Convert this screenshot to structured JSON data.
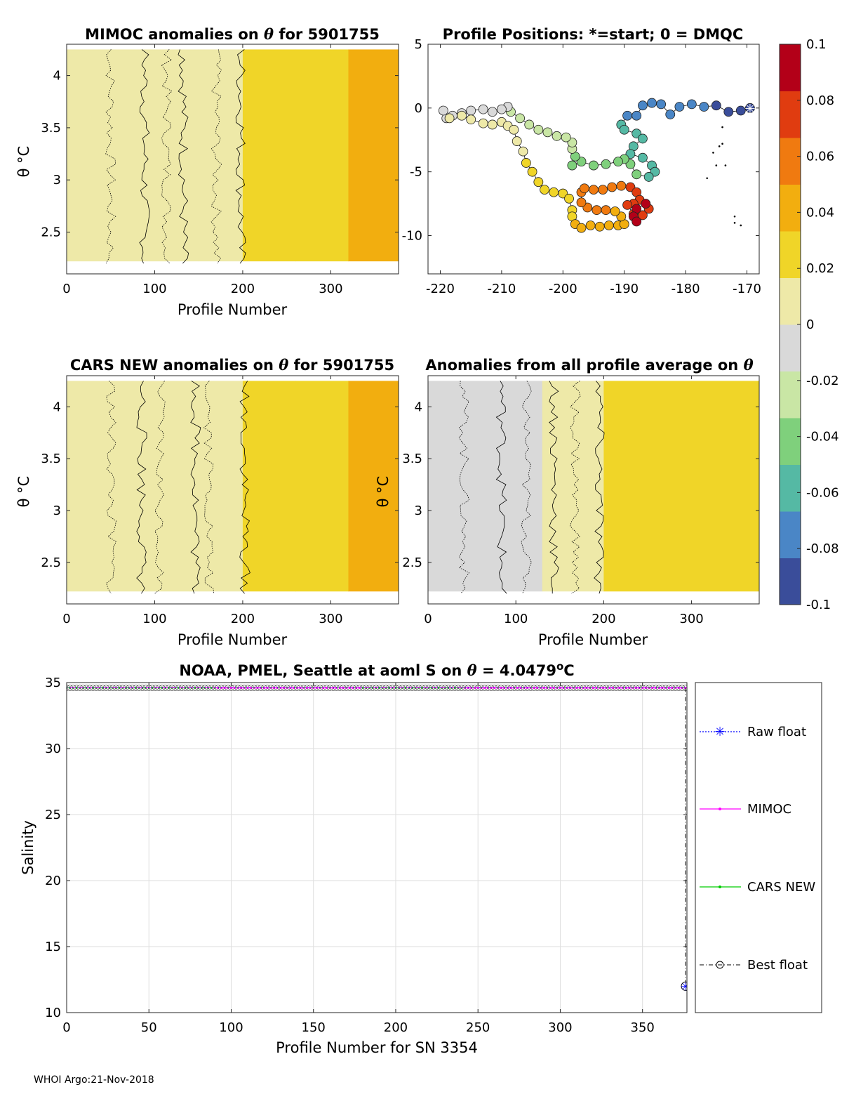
{
  "footer": "WHOI Argo:21-Nov-2018",
  "colors": {
    "raw_float": "#0000ff",
    "mimoc": "#ff00ff",
    "cars_new": "#00cc00",
    "best_float": "#000000",
    "colormap": [
      "#3a4d9a",
      "#4a86c6",
      "#55b9a4",
      "#7fd07c",
      "#c9e6a5",
      "#d9d9d9",
      "#eee9a8",
      "#f0d528",
      "#f2ae0f",
      "#f07a10",
      "#e03c10",
      "#b30018"
    ]
  },
  "colorbar": {
    "ticks": [
      "0.1",
      "0.08",
      "0.06",
      "0.04",
      "0.02",
      "0",
      "-0.02",
      "-0.04",
      "-0.06",
      "-0.08",
      "-0.1"
    ]
  },
  "chart_data": [
    {
      "id": "mimoc_anom",
      "type": "heatmap",
      "title": "MIMOC anomalies on",
      "title_sym": "θ",
      "title_tail": "  for 5901755",
      "xlabel": "Profile Number",
      "ylabel": "θ °C",
      "x_ticks": [
        "0",
        "100",
        "200",
        "300"
      ],
      "y_ticks": [
        "4",
        "3.5",
        "3",
        "2.5"
      ],
      "xlim": [
        0,
        377
      ],
      "ylim": [
        2.1,
        4.3
      ],
      "columns": [
        {
          "x": [
            0,
            150
          ],
          "value": 0.0
        },
        {
          "x": [
            150,
            200
          ],
          "value": 0.005
        },
        {
          "x": [
            200,
            260
          ],
          "value": 0.02
        },
        {
          "x": [
            260,
            320
          ],
          "value": 0.028
        },
        {
          "x": [
            320,
            377
          ],
          "value": 0.035
        }
      ]
    },
    {
      "id": "positions",
      "type": "scatter",
      "title": "Profile Positions: *=start; 0 = DMQC",
      "x_ticks": [
        "-220",
        "-210",
        "-200",
        "-190",
        "-180",
        "-170"
      ],
      "y_ticks": [
        "5",
        "0",
        "-5",
        "-10"
      ],
      "xlim": [
        -222,
        -168
      ],
      "ylim": [
        -13,
        5
      ],
      "path": [
        [
          -169.5,
          0
        ],
        [
          -171,
          -0.2
        ],
        [
          -173,
          -0.3
        ],
        [
          -175,
          0.2
        ],
        [
          -177,
          0.1
        ],
        [
          -179,
          0.3
        ],
        [
          -181,
          0.1
        ],
        [
          -182.5,
          -0.5
        ],
        [
          -184,
          0.3
        ],
        [
          -185.5,
          0.4
        ],
        [
          -187,
          0.2
        ],
        [
          -188,
          -0.6
        ],
        [
          -189.5,
          -0.6
        ],
        [
          -190.5,
          -1.3
        ],
        [
          -190,
          -1.7
        ],
        [
          -188,
          -2
        ],
        [
          -187,
          -2.4
        ],
        [
          -188.5,
          -3
        ],
        [
          -189,
          -3.6
        ],
        [
          -187,
          -3.9
        ],
        [
          -185.5,
          -4.5
        ],
        [
          -185,
          -5
        ],
        [
          -186,
          -5.4
        ],
        [
          -188,
          -5.2
        ],
        [
          -189,
          -4.4
        ],
        [
          -190,
          -4
        ],
        [
          -191,
          -4.2
        ],
        [
          -193,
          -4.4
        ],
        [
          -195,
          -4.5
        ],
        [
          -197,
          -4.2
        ],
        [
          -198.5,
          -4.5
        ],
        [
          -198,
          -3.8
        ],
        [
          -198.5,
          -3.2
        ],
        [
          -198.5,
          -2.7
        ],
        [
          -199.5,
          -2.3
        ],
        [
          -201,
          -2.2
        ],
        [
          -202.5,
          -1.9
        ],
        [
          -204,
          -1.7
        ],
        [
          -205.5,
          -1.3
        ],
        [
          -207,
          -0.8
        ],
        [
          -208.5,
          -0.3
        ],
        [
          -209,
          0.1
        ],
        [
          -210,
          -0.1
        ],
        [
          -211.5,
          -0.3
        ],
        [
          -213,
          -0.1
        ],
        [
          -215,
          -0.2
        ],
        [
          -216.5,
          -0.4
        ],
        [
          -218,
          -0.6
        ],
        [
          -219,
          -0.8
        ],
        [
          -219.5,
          -0.2
        ],
        [
          -218.5,
          -0.8
        ],
        [
          -216.5,
          -0.6
        ],
        [
          -215,
          -0.9
        ],
        [
          -213,
          -1.2
        ],
        [
          -211.5,
          -1.3
        ],
        [
          -210,
          -1.1
        ],
        [
          -209,
          -1.4
        ],
        [
          -208,
          -1.7
        ],
        [
          -207.5,
          -2.6
        ],
        [
          -206.5,
          -3.4
        ],
        [
          -206,
          -4.3
        ],
        [
          -205,
          -5
        ],
        [
          -204,
          -5.8
        ],
        [
          -203,
          -6.4
        ],
        [
          -201.5,
          -6.6
        ],
        [
          -200,
          -6.7
        ],
        [
          -199,
          -7.1
        ],
        [
          -198.5,
          -8
        ],
        [
          -198.5,
          -8.5
        ],
        [
          -198,
          -9.1
        ],
        [
          -197,
          -9.4
        ],
        [
          -195.5,
          -9.2
        ],
        [
          -194,
          -9.3
        ],
        [
          -192.5,
          -9.2
        ],
        [
          -191,
          -9.2
        ],
        [
          -190,
          -9.1
        ],
        [
          -190.5,
          -8.5
        ],
        [
          -191.5,
          -8.1
        ],
        [
          -193,
          -8
        ],
        [
          -194.5,
          -8
        ],
        [
          -196,
          -7.8
        ],
        [
          -197,
          -7.4
        ],
        [
          -197,
          -6.6
        ],
        [
          -196.5,
          -6.3
        ],
        [
          -195,
          -6.4
        ],
        [
          -193.5,
          -6.4
        ],
        [
          -192,
          -6.2
        ],
        [
          -190.5,
          -6.1
        ],
        [
          -189,
          -6.2
        ],
        [
          -188,
          -6.6
        ],
        [
          -187.5,
          -7.2
        ],
        [
          -188.5,
          -7.5
        ],
        [
          -189.5,
          -7.6
        ],
        [
          -188.5,
          -8.3
        ],
        [
          -188,
          -8.8
        ],
        [
          -187,
          -8.4
        ],
        [
          -186,
          -7.9
        ],
        [
          -186.5,
          -7.5
        ],
        [
          -188,
          -7.9
        ],
        [
          -188.5,
          -8.5
        ],
        [
          -188,
          -8.9
        ]
      ],
      "dots": [
        [
          -174,
          -1.5
        ],
        [
          -174,
          -2.8
        ],
        [
          -175.5,
          -3.5
        ],
        [
          -175,
          -4.5
        ],
        [
          -176.5,
          -5.5
        ],
        [
          -172,
          -8.5
        ],
        [
          -171,
          -9.2
        ],
        [
          -172,
          -9
        ],
        [
          -173.5,
          -4.5
        ],
        [
          -174.5,
          -3
        ]
      ],
      "start": [
        -169.5,
        0
      ]
    },
    {
      "id": "cars_anom",
      "type": "heatmap",
      "title": "CARS NEW anomalies on",
      "title_sym": "θ",
      "title_tail": " for 5901755",
      "xlabel": "Profile Number",
      "ylabel": "θ °C",
      "x_ticks": [
        "0",
        "100",
        "200",
        "300"
      ],
      "y_ticks": [
        "4",
        "3.5",
        "3",
        "2.5"
      ],
      "xlim": [
        0,
        377
      ],
      "ylim": [
        2.1,
        4.3
      ],
      "columns": [
        {
          "x": [
            0,
            140
          ],
          "value": 0.0
        },
        {
          "x": [
            140,
            200
          ],
          "value": 0.008
        },
        {
          "x": [
            200,
            260
          ],
          "value": 0.022
        },
        {
          "x": [
            260,
            320
          ],
          "value": 0.03
        },
        {
          "x": [
            320,
            377
          ],
          "value": 0.04
        }
      ]
    },
    {
      "id": "profile_avg_anom",
      "type": "heatmap",
      "title": "Anomalies from all profile average on",
      "title_sym": "θ",
      "title_tail": "",
      "xlabel": "Profile Number",
      "ylabel": "θ °C",
      "x_ticks": [
        "0",
        "100",
        "200",
        "300"
      ],
      "y_ticks": [
        "4",
        "3.5",
        "3",
        "2.5"
      ],
      "xlim": [
        0,
        377
      ],
      "ylim": [
        2.1,
        4.3
      ],
      "columns": [
        {
          "x": [
            0,
            40
          ],
          "value": -0.008
        },
        {
          "x": [
            40,
            130
          ],
          "value": -0.006
        },
        {
          "x": [
            130,
            200
          ],
          "value": 0.0
        },
        {
          "x": [
            200,
            377
          ],
          "value": 0.02
        }
      ]
    },
    {
      "id": "salinity",
      "type": "line",
      "title": "NOAA, PMEL, Seattle at aoml S on",
      "title_sym": "θ",
      "title_tail": " = 4.0479",
      "title_unit": "o",
      "title_end": "C",
      "xlabel": "Profile Number for SN 3354",
      "ylabel": "Salinity",
      "x_ticks": [
        "0",
        "50",
        "100",
        "150",
        "200",
        "250",
        "300",
        "350"
      ],
      "y_ticks": [
        "35",
        "30",
        "25",
        "20",
        "15",
        "10"
      ],
      "xlim": [
        0,
        377
      ],
      "ylim": [
        10,
        35
      ],
      "grid": true,
      "legend_position": "outside-right",
      "series": [
        {
          "name": "Raw float",
          "marker": "*",
          "style": "dotted",
          "values_const": 34.6,
          "last": [
            377,
            12.0
          ]
        },
        {
          "name": "MIMOC",
          "marker": "dot",
          "style": "solid",
          "values_const": 34.6
        },
        {
          "name": "CARS NEW",
          "marker": "dot",
          "style": "solid",
          "values_const": 34.6
        },
        {
          "name": "Best float",
          "marker": "o",
          "style": "dashdot",
          "values_const": 34.6,
          "last": [
            377,
            12.0
          ]
        }
      ]
    }
  ]
}
